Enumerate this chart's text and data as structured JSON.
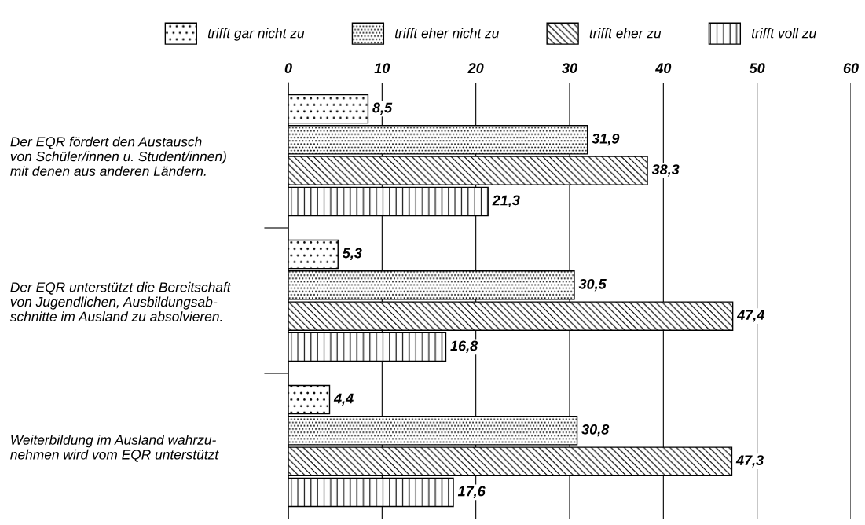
{
  "chart_data": {
    "type": "bar",
    "orientation": "horizontal",
    "categories": [
      "Der EQR fördert den Austausch\nvon Schüler/innen u. Student/innen)\nmit denen aus anderen Ländern.",
      "Der EQR unterstützt die Bereitschaft\nvon Jugendlichen, Ausbildungsab-\nschnitte im Ausland zu absolvieren.",
      "Weiterbildung im Ausland wahrzu-\nnehmen wird vom EQR unterstützt"
    ],
    "series": [
      {
        "name": "trifft gar nicht zu",
        "color": "#000000",
        "values": [
          8.5,
          5.3,
          4.4
        ],
        "value_labels": [
          "8,5",
          "5,3",
          "4,4"
        ]
      },
      {
        "name": "trifft eher nicht zu",
        "color": "#000000",
        "values": [
          31.9,
          30.5,
          30.8
        ],
        "value_labels": [
          "31,9",
          "30,5",
          "30,8"
        ]
      },
      {
        "name": "trifft eher zu",
        "color": "#000000",
        "values": [
          38.3,
          47.4,
          47.3
        ],
        "value_labels": [
          "38,3",
          "47,4",
          "47,3"
        ]
      },
      {
        "name": "trifft voll zu",
        "color": "#000000",
        "values": [
          21.3,
          16.8,
          17.6
        ],
        "value_labels": [
          "21,3",
          "16,8",
          "17,6"
        ]
      }
    ],
    "xlim": [
      0,
      60
    ],
    "xticks": [
      0,
      10,
      20,
      30,
      40,
      50,
      60
    ],
    "grid": "x",
    "legend": "top"
  }
}
